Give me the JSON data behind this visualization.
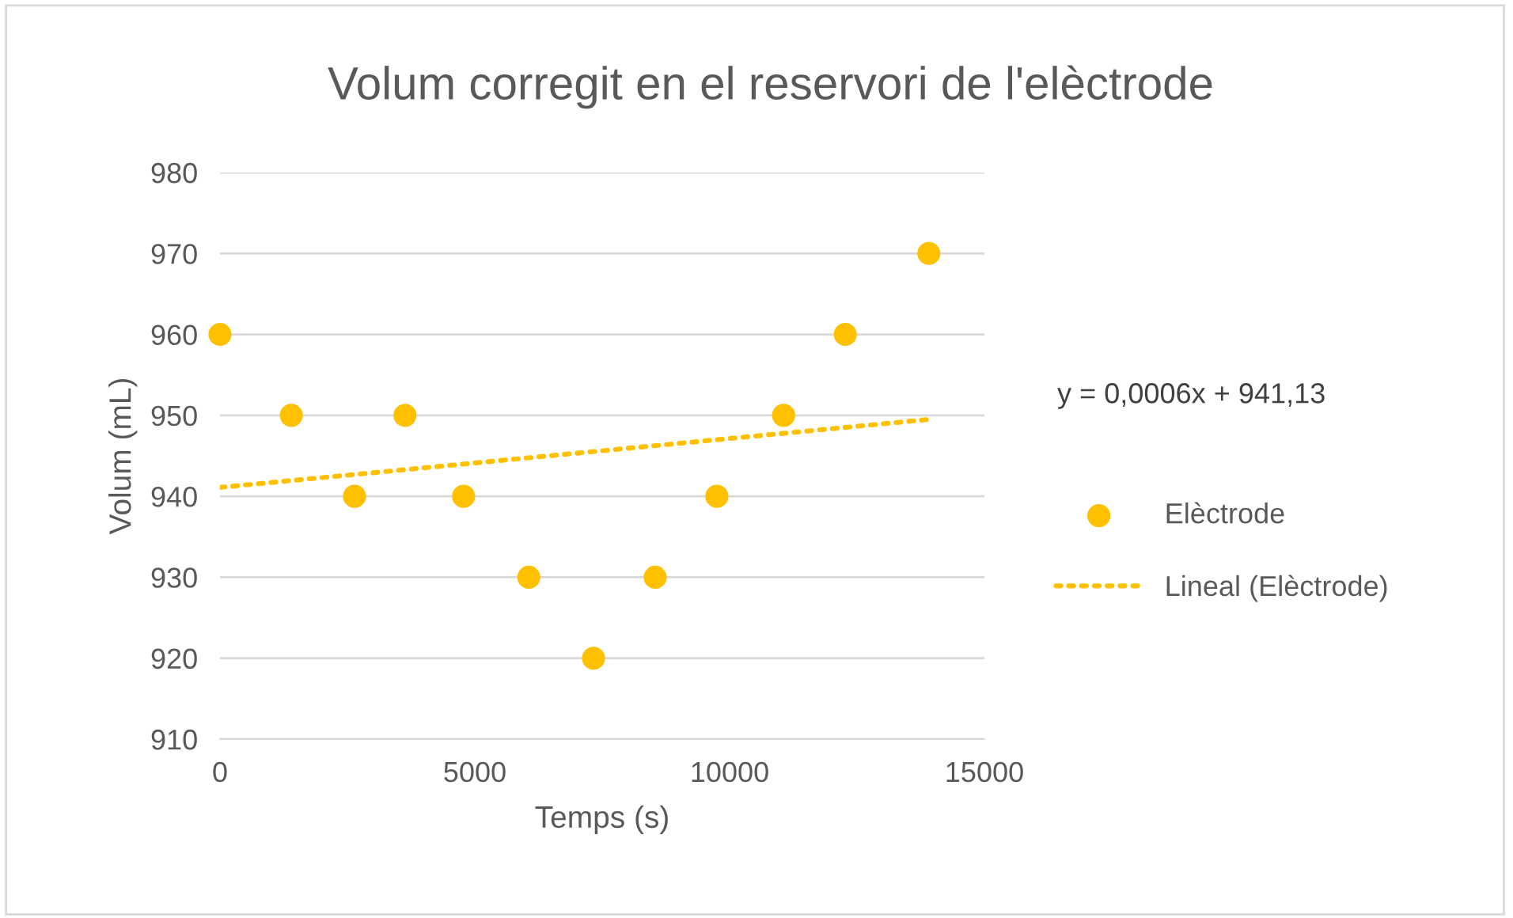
{
  "chart_data": {
    "type": "scatter",
    "title": "Volum corregit en el reservori de l'elèctrode",
    "xlabel": "Temps (s)",
    "ylabel": "Volum (mL)",
    "annotations": [
      "y = 0,0006x + 941,13"
    ],
    "series": [
      {
        "name": "Elèctrode",
        "color": "#ffc000",
        "marker": "circle",
        "x": [
          0,
          1400,
          2640,
          3630,
          4780,
          6060,
          7330,
          8540,
          9750,
          11060,
          12270,
          13910
        ],
        "values": [
          960,
          950,
          940,
          950,
          940,
          930,
          920,
          930,
          940,
          950,
          960,
          970
        ]
      },
      {
        "name": "Lineal (Elèctrode)",
        "color": "#ffc000",
        "type": "line",
        "line_style": "dotted",
        "x": [
          0,
          13910
        ],
        "values": [
          941.1,
          949.5
        ]
      }
    ],
    "xlim": [
      0,
      15000
    ],
    "xticks": [
      0,
      5000,
      10000,
      15000
    ],
    "ylim": [
      910,
      980
    ],
    "yticks": [
      910,
      920,
      930,
      940,
      950,
      960,
      970,
      980
    ],
    "grid": "y",
    "legend": "right"
  }
}
